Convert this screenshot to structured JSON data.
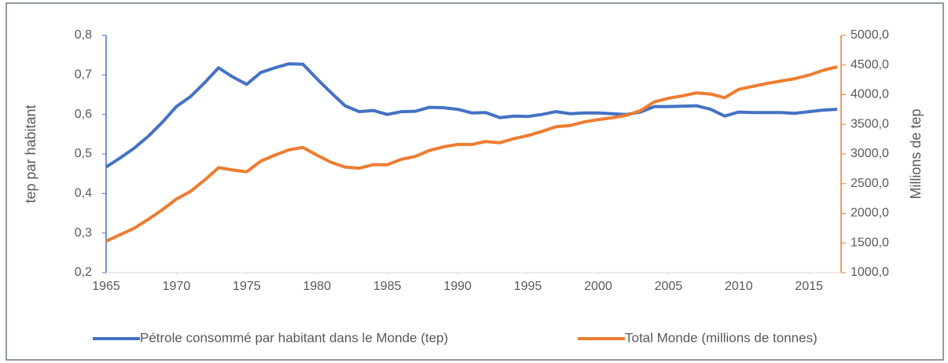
{
  "chart_data": {
    "type": "line",
    "x": [
      1965,
      1966,
      1967,
      1968,
      1969,
      1970,
      1971,
      1972,
      1973,
      1974,
      1975,
      1976,
      1977,
      1978,
      1979,
      1980,
      1981,
      1982,
      1983,
      1984,
      1985,
      1986,
      1987,
      1988,
      1989,
      1990,
      1991,
      1992,
      1993,
      1994,
      1995,
      1996,
      1997,
      1998,
      1999,
      2000,
      2001,
      2002,
      2003,
      2004,
      2005,
      2006,
      2007,
      2008,
      2009,
      2010,
      2011,
      2012,
      2013,
      2014,
      2015,
      2016,
      2017
    ],
    "series": [
      {
        "name": "Pétrole consommé par habitant dans le Monde (tep)",
        "color": "#4472c4",
        "axis": "y",
        "values": [
          0.467,
          0.49,
          0.515,
          0.545,
          0.58,
          0.62,
          0.645,
          0.68,
          0.718,
          0.695,
          0.676,
          0.706,
          0.718,
          0.728,
          0.727,
          0.69,
          0.655,
          0.622,
          0.607,
          0.61,
          0.6,
          0.607,
          0.608,
          0.618,
          0.617,
          0.613,
          0.604,
          0.605,
          0.592,
          0.596,
          0.595,
          0.6,
          0.607,
          0.602,
          0.604,
          0.604,
          0.602,
          0.6,
          0.606,
          0.62,
          0.62,
          0.621,
          0.622,
          0.613,
          0.596,
          0.606,
          0.605,
          0.605,
          0.605,
          0.603,
          0.607,
          0.611,
          0.613
        ]
      },
      {
        "name": "Total Monde (millions de tonnes)",
        "color": "#ed7d31",
        "axis": "y2",
        "values": [
          1530,
          1640,
          1750,
          1900,
          2060,
          2240,
          2370,
          2560,
          2770,
          2730,
          2700,
          2880,
          2980,
          3070,
          3110,
          2980,
          2860,
          2780,
          2760,
          2820,
          2820,
          2910,
          2960,
          3060,
          3120,
          3160,
          3160,
          3210,
          3190,
          3260,
          3310,
          3380,
          3460,
          3480,
          3540,
          3580,
          3610,
          3650,
          3730,
          3880,
          3940,
          3980,
          4030,
          4010,
          3950,
          4090,
          4140,
          4190,
          4230,
          4270,
          4330,
          4410,
          4470
        ]
      }
    ],
    "xlim": [
      1965,
      2017
    ],
    "xticks": [
      1965,
      1970,
      1975,
      1980,
      1985,
      1990,
      1995,
      2000,
      2005,
      2010,
      2015
    ],
    "ylim": [
      0.2,
      0.8
    ],
    "yticks": [
      {
        "value": 0.2,
        "label": "0,2"
      },
      {
        "value": 0.3,
        "label": "0,3"
      },
      {
        "value": 0.4,
        "label": "0,4"
      },
      {
        "value": 0.5,
        "label": "0,5"
      },
      {
        "value": 0.6,
        "label": "0,6"
      },
      {
        "value": 0.7,
        "label": "0,7"
      },
      {
        "value": 0.8,
        "label": "0,8"
      }
    ],
    "y2lim": [
      1000,
      5000
    ],
    "y2ticks": [
      {
        "value": 1000,
        "label": "1000,0"
      },
      {
        "value": 1500,
        "label": "1500,0"
      },
      {
        "value": 2000,
        "label": "2000,0"
      },
      {
        "value": 2500,
        "label": "2500,0"
      },
      {
        "value": 3000,
        "label": "3000,0"
      },
      {
        "value": 3500,
        "label": "3500,0"
      },
      {
        "value": 4000,
        "label": "4000,0"
      },
      {
        "value": 4500,
        "label": "4500,0"
      },
      {
        "value": 5000,
        "label": "5000,0"
      }
    ],
    "ylabel": "tep par habitant",
    "y2label": "Millions de tep",
    "legend": "bottom"
  }
}
